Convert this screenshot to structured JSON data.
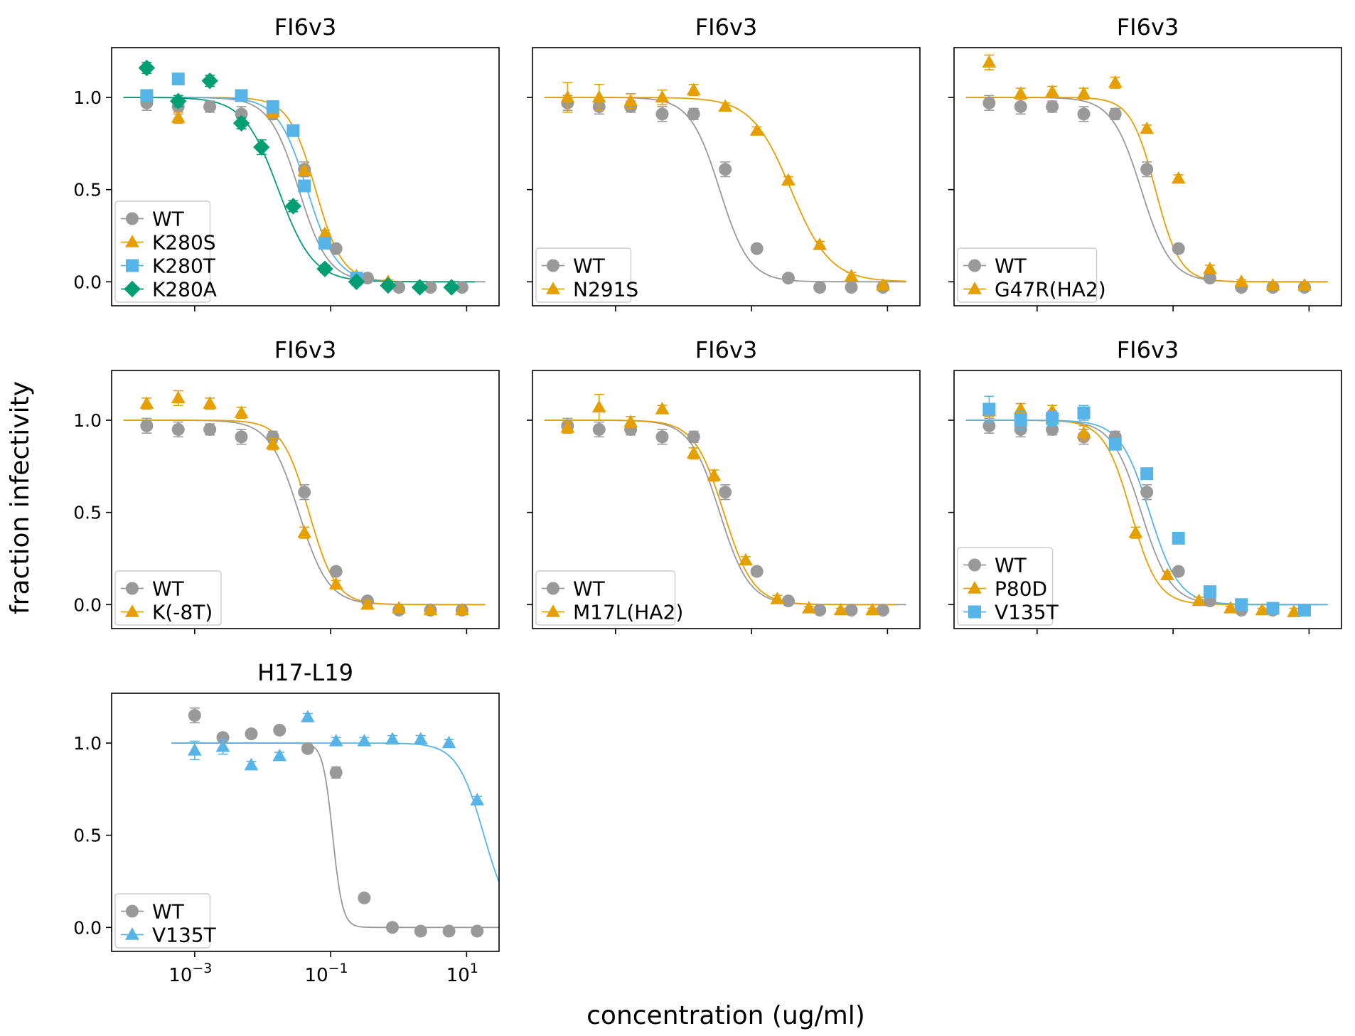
{
  "figure": {
    "xlabel": "concentration (ug/ml)",
    "ylabel": "fraction infectivity"
  },
  "chart_data": [
    {
      "type": "line",
      "title": "FI6v3",
      "xlabel": "",
      "ylabel": "",
      "x_scale": "log",
      "xlim": [
        6e-05,
        30
      ],
      "ylim": [
        -0.13,
        1.27
      ],
      "yticks": [
        0.0,
        0.5,
        1.0
      ],
      "grid": false,
      "legend_position": "lower-left",
      "series": [
        {
          "name": "WT",
          "color": "#999999",
          "marker": "circle",
          "x": [
            0.000197,
            0.000573,
            0.00167,
            0.00486,
            0.0141,
            0.0411,
            0.12,
            0.348,
            1.01,
            2.94,
            8.56
          ],
          "y": [
            0.97,
            0.95,
            0.95,
            0.91,
            0.91,
            0.61,
            0.18,
            0.02,
            -0.03,
            -0.03,
            -0.03
          ],
          "err": [
            0.04,
            0.04,
            0.03,
            0.04,
            0.03,
            0.04,
            0.02,
            0.01,
            0.01,
            0.01,
            0.01
          ],
          "ic50": 0.034,
          "hill": 2.0
        },
        {
          "name": "K280S",
          "color": "#E69F00",
          "marker": "triangle",
          "x": [
            0.000573,
            0.0141,
            0.0411,
            0.0822,
            0.24,
            0.7
          ],
          "y": [
            0.89,
            0.92,
            0.6,
            0.26,
            0.03,
            0.0
          ],
          "err": [
            0.03,
            0.03,
            0.02,
            0.02,
            0.01,
            0.01
          ],
          "ic50": 0.06,
          "hill": 2.2
        },
        {
          "name": "K280T",
          "color": "#56B4E9",
          "marker": "square",
          "x": [
            0.000197,
            0.000573,
            0.00486,
            0.0141,
            0.0281,
            0.0411,
            0.0822,
            0.24
          ],
          "y": [
            1.01,
            1.1,
            1.01,
            0.95,
            0.82,
            0.52,
            0.21,
            0.02
          ],
          "err": [
            0.02,
            0.02,
            0.02,
            0.02,
            0.02,
            0.03,
            0.02,
            0.01
          ],
          "ic50": 0.045,
          "hill": 2.0
        },
        {
          "name": "K280A",
          "color": "#009E73",
          "marker": "diamond",
          "x": [
            0.000197,
            0.000573,
            0.00167,
            0.00486,
            0.0096,
            0.0281,
            0.0822,
            0.24,
            0.7,
            2.05,
            6.0
          ],
          "y": [
            1.16,
            0.98,
            1.09,
            0.86,
            0.73,
            0.41,
            0.07,
            0.0,
            -0.02,
            -0.03,
            -0.03
          ],
          "err": [
            0.03,
            0.03,
            0.03,
            0.03,
            0.04,
            0.03,
            0.02,
            0.02,
            0.01,
            0.01,
            0.01
          ],
          "ic50": 0.017,
          "hill": 1.7
        }
      ]
    },
    {
      "type": "line",
      "title": "FI6v3",
      "xlabel": "",
      "ylabel": "",
      "x_scale": "log",
      "xlim": [
        6e-05,
        30
      ],
      "ylim": [
        -0.13,
        1.27
      ],
      "yticks": [
        0.0,
        0.5,
        1.0
      ],
      "grid": false,
      "legend_position": "lower-left",
      "series": [
        {
          "name": "WT",
          "color": "#999999",
          "marker": "circle",
          "x": [
            0.000197,
            0.000573,
            0.00167,
            0.00486,
            0.0141,
            0.0411,
            0.12,
            0.348,
            1.01,
            2.94,
            8.56
          ],
          "y": [
            0.97,
            0.95,
            0.95,
            0.91,
            0.91,
            0.61,
            0.18,
            0.02,
            -0.03,
            -0.03,
            -0.03
          ],
          "err": [
            0.04,
            0.04,
            0.03,
            0.04,
            0.03,
            0.04,
            0.02,
            0.01,
            0.01,
            0.01,
            0.01
          ],
          "ic50": 0.034,
          "hill": 2.0
        },
        {
          "name": "N291S",
          "color": "#E69F00",
          "marker": "triangle",
          "x": [
            0.000197,
            0.000573,
            0.00167,
            0.00486,
            0.0141,
            0.0411,
            0.12,
            0.348,
            1.01,
            2.94,
            8.56
          ],
          "y": [
            1.0,
            1.0,
            0.98,
            1.0,
            1.04,
            0.95,
            0.82,
            0.55,
            0.2,
            0.03,
            -0.02
          ],
          "err": [
            0.08,
            0.07,
            0.04,
            0.04,
            0.03,
            0.02,
            0.02,
            0.02,
            0.02,
            0.02,
            0.01
          ],
          "ic50": 0.38,
          "hill": 1.5
        }
      ]
    },
    {
      "type": "line",
      "title": "FI6v3",
      "xlabel": "",
      "ylabel": "",
      "x_scale": "log",
      "xlim": [
        6e-05,
        30
      ],
      "ylim": [
        -0.13,
        1.27
      ],
      "yticks": [
        0.0,
        0.5,
        1.0
      ],
      "grid": false,
      "legend_position": "lower-left",
      "series": [
        {
          "name": "WT",
          "color": "#999999",
          "marker": "circle",
          "x": [
            0.000197,
            0.000573,
            0.00167,
            0.00486,
            0.0141,
            0.0411,
            0.12,
            0.348,
            1.01,
            2.94,
            8.56
          ],
          "y": [
            0.97,
            0.95,
            0.95,
            0.91,
            0.91,
            0.61,
            0.18,
            0.02,
            -0.03,
            -0.03,
            -0.03
          ],
          "err": [
            0.04,
            0.04,
            0.03,
            0.04,
            0.03,
            0.04,
            0.02,
            0.01,
            0.01,
            0.01,
            0.01
          ],
          "ic50": 0.034,
          "hill": 2.0
        },
        {
          "name": "G47R(HA2)",
          "color": "#E69F00",
          "marker": "triangle",
          "x": [
            0.000197,
            0.000573,
            0.00167,
            0.00486,
            0.0141,
            0.0411,
            0.12,
            0.348,
            1.01,
            2.94,
            8.56
          ],
          "y": [
            1.19,
            1.02,
            1.03,
            1.02,
            1.08,
            0.83,
            0.56,
            0.07,
            0.0,
            -0.02,
            -0.02
          ],
          "err": [
            0.04,
            0.03,
            0.03,
            0.03,
            0.03,
            0.02,
            0.02,
            0.02,
            0.01,
            0.01,
            0.01
          ],
          "ic50": 0.055,
          "hill": 2.4
        }
      ]
    },
    {
      "type": "line",
      "title": "FI6v3",
      "xlabel": "",
      "ylabel": "",
      "x_scale": "log",
      "xlim": [
        6e-05,
        30
      ],
      "ylim": [
        -0.13,
        1.27
      ],
      "yticks": [
        0.0,
        0.5,
        1.0
      ],
      "grid": false,
      "legend_position": "lower-left",
      "series": [
        {
          "name": "WT",
          "color": "#999999",
          "marker": "circle",
          "x": [
            0.000197,
            0.000573,
            0.00167,
            0.00486,
            0.0141,
            0.0411,
            0.12,
            0.348,
            1.01,
            2.94,
            8.56
          ],
          "y": [
            0.97,
            0.95,
            0.95,
            0.91,
            0.91,
            0.61,
            0.18,
            0.02,
            -0.03,
            -0.03,
            -0.03
          ],
          "err": [
            0.04,
            0.04,
            0.03,
            0.04,
            0.03,
            0.04,
            0.02,
            0.01,
            0.01,
            0.01,
            0.01
          ],
          "ic50": 0.034,
          "hill": 2.0
        },
        {
          "name": "K(-8T)",
          "color": "#E69F00",
          "marker": "triangle",
          "x": [
            0.000197,
            0.000573,
            0.00167,
            0.00486,
            0.0141,
            0.0411,
            0.12,
            0.348,
            1.01,
            2.94,
            8.56
          ],
          "y": [
            1.09,
            1.12,
            1.09,
            1.04,
            0.87,
            0.39,
            0.11,
            0.0,
            -0.02,
            -0.03,
            -0.03
          ],
          "err": [
            0.03,
            0.04,
            0.03,
            0.03,
            0.03,
            0.03,
            0.02,
            0.02,
            0.01,
            0.01,
            0.01
          ],
          "ic50": 0.048,
          "hill": 2.2
        }
      ]
    },
    {
      "type": "line",
      "title": "FI6v3",
      "xlabel": "",
      "ylabel": "",
      "x_scale": "log",
      "xlim": [
        6e-05,
        30
      ],
      "ylim": [
        -0.13,
        1.27
      ],
      "yticks": [
        0.0,
        0.5,
        1.0
      ],
      "grid": false,
      "legend_position": "lower-left",
      "series": [
        {
          "name": "WT",
          "color": "#999999",
          "marker": "circle",
          "x": [
            0.000197,
            0.000573,
            0.00167,
            0.00486,
            0.0141,
            0.0411,
            0.12,
            0.348,
            1.01,
            2.94,
            8.56
          ],
          "y": [
            0.97,
            0.95,
            0.95,
            0.91,
            0.91,
            0.61,
            0.18,
            0.02,
            -0.03,
            -0.03,
            -0.03
          ],
          "err": [
            0.04,
            0.04,
            0.03,
            0.04,
            0.03,
            0.04,
            0.02,
            0.01,
            0.01,
            0.01,
            0.01
          ],
          "ic50": 0.034,
          "hill": 2.0
        },
        {
          "name": "M17L(HA2)",
          "color": "#E69F00",
          "marker": "triangle",
          "x": [
            0.000197,
            0.000573,
            0.00167,
            0.00486,
            0.0141,
            0.0281,
            0.0822,
            0.24,
            0.7,
            2.05,
            6.0
          ],
          "y": [
            0.96,
            1.07,
            0.99,
            1.06,
            0.82,
            0.7,
            0.24,
            0.03,
            -0.02,
            -0.03,
            -0.03
          ],
          "err": [
            0.03,
            0.07,
            0.03,
            0.02,
            0.03,
            0.03,
            0.02,
            0.02,
            0.01,
            0.01,
            0.01
          ],
          "ic50": 0.039,
          "hill": 2.0
        }
      ]
    },
    {
      "type": "line",
      "title": "FI6v3",
      "xlabel": "",
      "ylabel": "",
      "x_scale": "log",
      "xlim": [
        6e-05,
        30
      ],
      "ylim": [
        -0.13,
        1.27
      ],
      "yticks": [
        0.0,
        0.5,
        1.0
      ],
      "grid": false,
      "legend_position": "lower-left",
      "series": [
        {
          "name": "WT",
          "color": "#999999",
          "marker": "circle",
          "x": [
            0.000197,
            0.000573,
            0.00167,
            0.00486,
            0.0141,
            0.0411,
            0.12,
            0.348,
            1.01,
            2.94,
            8.56
          ],
          "y": [
            0.97,
            0.95,
            0.95,
            0.91,
            0.91,
            0.61,
            0.18,
            0.02,
            -0.03,
            -0.03,
            -0.03
          ],
          "err": [
            0.04,
            0.04,
            0.03,
            0.04,
            0.03,
            0.04,
            0.02,
            0.01,
            0.01,
            0.01,
            0.01
          ],
          "ic50": 0.034,
          "hill": 2.0
        },
        {
          "name": "P80D",
          "color": "#E69F00",
          "marker": "triangle",
          "x": [
            0.000197,
            0.000573,
            0.00167,
            0.00486,
            0.0141,
            0.0281,
            0.0822,
            0.24,
            0.7,
            2.05,
            6.0
          ],
          "y": [
            1.05,
            1.06,
            1.05,
            0.93,
            0.87,
            0.39,
            0.16,
            0.02,
            -0.02,
            -0.03,
            -0.04
          ],
          "err": [
            0.03,
            0.03,
            0.03,
            0.04,
            0.03,
            0.03,
            0.02,
            0.02,
            0.01,
            0.01,
            0.02
          ],
          "ic50": 0.024,
          "hill": 2.2
        },
        {
          "name": "V135T",
          "color": "#56B4E9",
          "marker": "square",
          "x": [
            0.000197,
            0.000573,
            0.00167,
            0.00486,
            0.0141,
            0.0411,
            0.12,
            0.348,
            1.01,
            2.94,
            8.56
          ],
          "y": [
            1.06,
            1.0,
            1.01,
            1.04,
            0.87,
            0.71,
            0.36,
            0.07,
            0.0,
            -0.02,
            -0.03
          ],
          "err": [
            0.07,
            0.05,
            0.04,
            0.04,
            0.03,
            0.03,
            0.03,
            0.02,
            0.01,
            0.01,
            0.01
          ],
          "ic50": 0.045,
          "hill": 2.0
        }
      ]
    },
    {
      "type": "line",
      "title": "H17-L19",
      "xlabel": "",
      "ylabel": "",
      "x_scale": "log",
      "xlim": [
        6e-05,
        30
      ],
      "xticks": [
        "10^-3",
        "10^-1",
        "10^1"
      ],
      "ylim": [
        -0.13,
        1.27
      ],
      "yticks": [
        0.0,
        0.5,
        1.0
      ],
      "grid": false,
      "legend_position": "lower-left",
      "series": [
        {
          "name": "WT",
          "color": "#999999",
          "marker": "circle",
          "x": [
            0.001,
            0.0026,
            0.0068,
            0.0177,
            0.046,
            0.12,
            0.312,
            0.81,
            2.11,
            5.5,
            14.3
          ],
          "y": [
            1.15,
            1.03,
            1.05,
            1.07,
            0.97,
            0.84,
            0.16,
            0.0,
            -0.02,
            -0.02,
            -0.02
          ],
          "err": [
            0.04,
            0.02,
            0.02,
            0.02,
            0.02,
            0.03,
            0.02,
            0.01,
            0.01,
            0.01,
            0.01
          ],
          "ic50": 0.107,
          "hill": 6.0
        },
        {
          "name": "V135T",
          "color": "#56B4E9",
          "marker": "triangle",
          "x": [
            0.001,
            0.0026,
            0.0068,
            0.0177,
            0.046,
            0.12,
            0.312,
            0.81,
            2.11,
            5.5,
            14.3
          ],
          "y": [
            0.96,
            0.98,
            0.88,
            0.93,
            1.14,
            1.01,
            1.01,
            1.02,
            1.02,
            1.0,
            0.69
          ],
          "err": [
            0.05,
            0.04,
            0.02,
            0.02,
            0.02,
            0.02,
            0.02,
            0.02,
            0.02,
            0.02,
            0.02
          ],
          "ic50": 18,
          "hill": 2.2
        }
      ]
    }
  ]
}
